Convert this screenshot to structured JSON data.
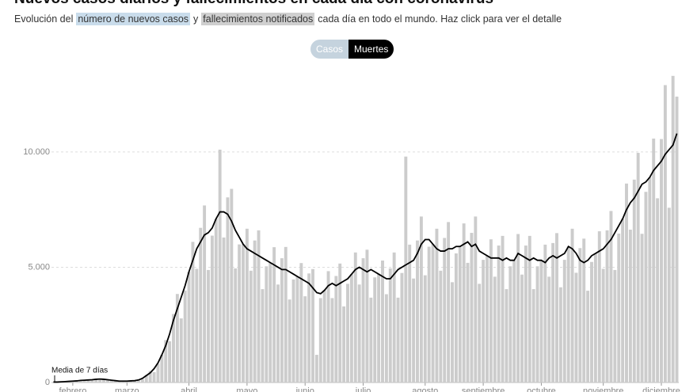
{
  "chart_data": {
    "type": "bar",
    "title": "Nuevos casos diarios y fallecimientos en cada día con coronavirus",
    "subtitle": [
      "Evolución del",
      "número de nuevos casos",
      "y",
      "fallecimientos notificados",
      "cada día en todo el mundo. Haz click para ver el detalle"
    ],
    "toggle": [
      "Casos",
      "Muertes"
    ],
    "categories": [
      null,
      null,
      null,
      null,
      null,
      "febrero",
      null,
      null,
      null,
      null,
      null,
      null,
      null,
      null,
      null,
      null,
      null,
      null,
      null,
      "marzo",
      null,
      null,
      null,
      null,
      null,
      null,
      null,
      null,
      null,
      null,
      null,
      null,
      null,
      null,
      null,
      "abril",
      null,
      null,
      null,
      null,
      null,
      null,
      null,
      null,
      null,
      null,
      null,
      null,
      null,
      null,
      "mayo",
      null,
      null,
      null,
      null,
      null,
      null,
      null,
      null,
      null,
      null,
      null,
      null,
      null,
      null,
      "junio",
      null,
      null,
      null,
      null,
      null,
      null,
      null,
      null,
      null,
      null,
      null,
      null,
      null,
      null,
      "julio",
      null,
      null,
      null,
      null,
      null,
      null,
      null,
      null,
      null,
      null,
      null,
      null,
      null,
      null,
      null,
      "agosto",
      null,
      null,
      null,
      null,
      null,
      null,
      null,
      null,
      null,
      null,
      null,
      null,
      null,
      null,
      "septiembre",
      null,
      null,
      null,
      null,
      null,
      null,
      null,
      null,
      null,
      null,
      null,
      null,
      null,
      null,
      "octubre",
      null,
      null,
      null,
      null,
      null,
      null,
      null,
      null,
      null,
      null,
      null,
      null,
      null,
      null,
      null,
      "noviembre",
      null,
      null,
      null,
      null,
      null,
      null,
      null,
      null,
      null,
      null,
      null,
      null,
      null,
      null,
      "diciembre",
      null,
      null,
      null,
      null
    ],
    "series": [
      {
        "type": "bar",
        "color": "#cccccc",
        "values": [
          20,
          20,
          30,
          40,
          60,
          50,
          70,
          90,
          120,
          90,
          130,
          170,
          110,
          130,
          120,
          120,
          70,
          70,
          70,
          50,
          70,
          80,
          130,
          150,
          330,
          500,
          450,
          810,
          1200,
          1840,
          1790,
          2970,
          3840,
          2780,
          3990,
          4800,
          6100,
          4930,
          6710,
          7680,
          4880,
          6370,
          7100,
          10100,
          6290,
          8030,
          8400,
          4950,
          5990,
          6000,
          6670,
          4850,
          6160,
          6600,
          4050,
          5040,
          5200,
          5870,
          4250,
          5390,
          5880,
          3600,
          4470,
          4600,
          5180,
          3740,
          4730,
          4920,
          1200,
          3660,
          4000,
          4830,
          3660,
          4620,
          5160,
          3300,
          4280,
          4700,
          5640,
          4250,
          5390,
          5760,
          3680,
          4560,
          4700,
          5290,
          3830,
          4950,
          5640,
          3680,
          4750,
          9800,
          5980,
          4510,
          6160,
          7200,
          4650,
          5890,
          6000,
          6670,
          4850,
          6270,
          6960,
          4350,
          5600,
          5900,
          6900,
          5190,
          6490,
          7200,
          4280,
          5320,
          5500,
          6210,
          4590,
          5940,
          6360,
          4050,
          5040,
          5300,
          6440,
          4680,
          5940,
          6360,
          4050,
          5040,
          5300,
          5980,
          4590,
          6050,
          6480,
          4130,
          5320,
          5900,
          6670,
          4760,
          5830,
          6240,
          3980,
          5230,
          5600,
          6560,
          4930,
          6600,
          7440,
          4880,
          6460,
          7100,
          8630,
          6630,
          8800,
          9960,
          6450,
          8270,
          8900,
          10580,
          7990,
          10560,
          12900,
          7580,
          13300,
          12400
        ]
      },
      {
        "type": "line",
        "name": "Media de 7 días",
        "color": "#000000",
        "values": [
          20,
          20,
          30,
          40,
          50,
          60,
          70,
          90,
          100,
          110,
          120,
          140,
          150,
          140,
          120,
          100,
          80,
          60,
          60,
          60,
          70,
          80,
          110,
          180,
          300,
          420,
          600,
          850,
          1200,
          1600,
          2100,
          2700,
          3200,
          3700,
          4200,
          4800,
          5300,
          5800,
          6100,
          6400,
          6500,
          6700,
          7100,
          7400,
          7400,
          7300,
          7000,
          6600,
          6300,
          6000,
          5800,
          5700,
          5600,
          5500,
          5400,
          5300,
          5200,
          5100,
          5000,
          4900,
          4900,
          4800,
          4700,
          4600,
          4500,
          4400,
          4300,
          4100,
          3900,
          3850,
          4000,
          4200,
          4300,
          4200,
          4300,
          4400,
          4500,
          4700,
          4900,
          5000,
          4900,
          4800,
          4900,
          4800,
          4700,
          4600,
          4500,
          4500,
          4700,
          4900,
          5000,
          5100,
          5200,
          5300,
          5600,
          6000,
          6200,
          6200,
          6000,
          5800,
          5700,
          5700,
          5800,
          5800,
          5900,
          5900,
          6000,
          6100,
          5900,
          6000,
          5700,
          5600,
          5500,
          5400,
          5400,
          5400,
          5300,
          5400,
          5300,
          5300,
          5600,
          5500,
          5400,
          5300,
          5400,
          5300,
          5300,
          5200,
          5400,
          5500,
          5400,
          5500,
          5600,
          5900,
          5800,
          5600,
          5300,
          5200,
          5300,
          5500,
          5600,
          5700,
          5800,
          6000,
          6200,
          6500,
          6800,
          7100,
          7500,
          7800,
          8000,
          8300,
          8600,
          8700,
          8900,
          9200,
          9400,
          9600,
          9900,
          10100,
          10300,
          10800
        ]
      }
    ],
    "ylim": [
      0,
      13500
    ],
    "yticks": [
      0,
      {
        "value": 5000,
        "label": "5.000"
      },
      {
        "value": 10000,
        "label": "10.000"
      }
    ],
    "grid": true
  }
}
